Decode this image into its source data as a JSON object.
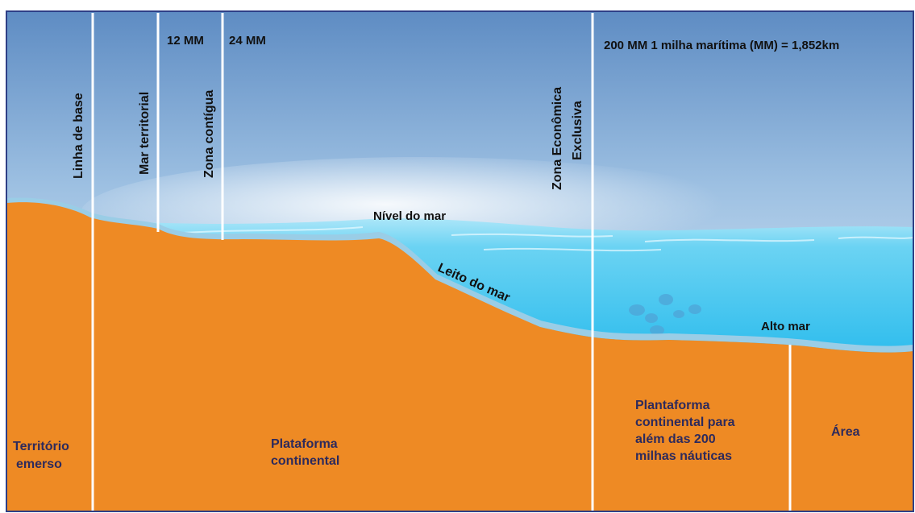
{
  "distances": {
    "mm12": "12 MM",
    "mm24": "24 MM",
    "mm200": "200 MM",
    "unit_note": "1 milha marítima (MM) = 1,852km"
  },
  "zones": {
    "linha_base": "Linha de base",
    "mar_territorial": "Mar territorial",
    "zona_contigua": "Zona contígua",
    "zee_line1": "Zona Econômica",
    "zee_line2": "Exclusiva"
  },
  "surface": {
    "nivel_mar": "Nível do mar",
    "leito_mar": "Leito do mar",
    "alto_mar": "Alto mar"
  },
  "ground": {
    "territorio_1": "Território",
    "territorio_2": "emerso",
    "plataforma_1": "Plataforma",
    "plataforma_2": "continental",
    "alem_1": "Plantaforma",
    "alem_2": "continental para",
    "alem_3": "além das 200",
    "alem_4": "milhas náuticas",
    "area": "Área"
  },
  "colors": {
    "land": "#EE8A24",
    "sky_top": "#5E8CC3",
    "sky_horizon": "#F6FBFE",
    "water": "#3CC3EE",
    "frame": "#2E3F86",
    "divider": "#FFFFFF"
  }
}
